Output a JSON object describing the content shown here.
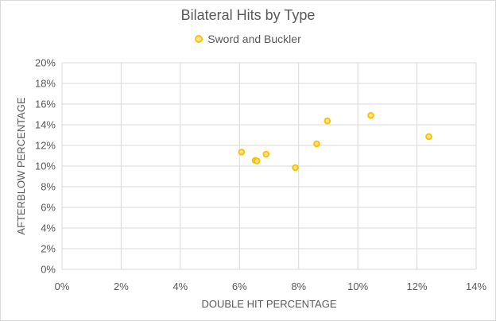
{
  "chart_data": {
    "type": "scatter",
    "title": "Bilateral Hits by Type",
    "xlabel": "DOUBLE HIT PERCENTAGE",
    "ylabel": "AFTERBLOW PERCENTAGE",
    "xlim": [
      0,
      0.14
    ],
    "ylim": [
      0,
      0.2
    ],
    "x_ticks": [
      "0%",
      "2%",
      "4%",
      "6%",
      "8%",
      "10%",
      "12%",
      "14%"
    ],
    "y_ticks": [
      "0%",
      "2%",
      "4%",
      "6%",
      "8%",
      "10%",
      "12%",
      "14%",
      "16%",
      "18%",
      "20%"
    ],
    "grid": true,
    "legend": "top-center",
    "series": [
      {
        "name": "Sword and Buckler",
        "color": "#ffc000",
        "fill": "#ffe699",
        "points": [
          {
            "x": 0.0607,
            "y": 0.1135
          },
          {
            "x": 0.0653,
            "y": 0.1055
          },
          {
            "x": 0.0659,
            "y": 0.105
          },
          {
            "x": 0.069,
            "y": 0.1115
          },
          {
            "x": 0.0789,
            "y": 0.0985
          },
          {
            "x": 0.0861,
            "y": 0.1215
          },
          {
            "x": 0.0897,
            "y": 0.1437
          },
          {
            "x": 0.1044,
            "y": 0.149
          },
          {
            "x": 0.124,
            "y": 0.1285
          }
        ]
      }
    ]
  }
}
